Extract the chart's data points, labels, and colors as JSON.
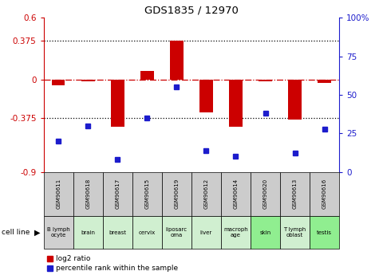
{
  "title": "GDS1835 / 12970",
  "gsm_labels": [
    "GSM90611",
    "GSM90618",
    "GSM90617",
    "GSM90615",
    "GSM90619",
    "GSM90612",
    "GSM90614",
    "GSM90620",
    "GSM90613",
    "GSM90616"
  ],
  "cell_labels": [
    "B lymph\nocyte",
    "brain",
    "breast",
    "cervix",
    "liposarc\noma",
    "liver",
    "macroph\nage",
    "skin",
    "T lymph\noblast",
    "testis"
  ],
  "cell_bg_colors": [
    "#d0d0d0",
    "#d0efd0",
    "#d0efd0",
    "#d0efd0",
    "#d0efd0",
    "#d0efd0",
    "#d0efd0",
    "#90ee90",
    "#d0efd0",
    "#90ee90"
  ],
  "log2_ratio": [
    -0.06,
    -0.02,
    -0.46,
    0.08,
    0.38,
    -0.32,
    -0.46,
    -0.015,
    -0.39,
    -0.035
  ],
  "pct_rank": [
    20,
    30,
    8,
    35,
    55,
    14,
    10,
    38,
    12,
    28
  ],
  "ylim_left": [
    -0.9,
    0.6
  ],
  "ylim_right": [
    0,
    100
  ],
  "yticks_left": [
    -0.9,
    -0.375,
    0,
    0.375,
    0.6
  ],
  "ytick_labels_left": [
    "-0.9",
    "-0.375",
    "0",
    "0.375",
    "0.6"
  ],
  "yticks_right": [
    0,
    25,
    50,
    75,
    100
  ],
  "ytick_labels_right": [
    "0",
    "25",
    "50",
    "75",
    "100%"
  ],
  "hlines": [
    0.375,
    -0.375
  ],
  "bar_color": "#cc0000",
  "dot_color": "#1c1ccc",
  "zero_line_color": "#cc0000",
  "left_axis_color": "#cc0000",
  "right_axis_color": "#1c1ccc",
  "plot_bg": "#ffffff",
  "gsm_bg": "#cccccc"
}
